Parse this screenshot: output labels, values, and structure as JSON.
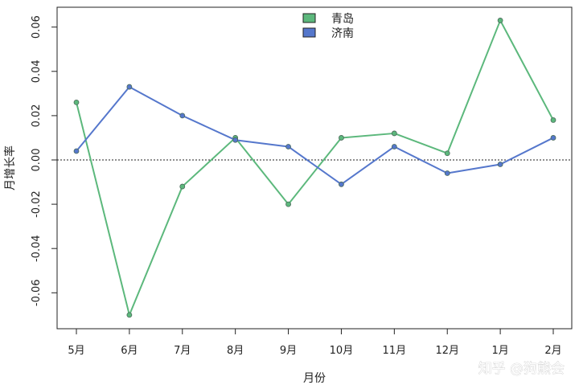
{
  "chart_data": {
    "type": "line",
    "title": "",
    "xlabel": "月份",
    "ylabel": "月增长率",
    "categories": [
      "5月",
      "6月",
      "7月",
      "8月",
      "9月",
      "10月",
      "11月",
      "12月",
      "1月",
      "2月"
    ],
    "series": [
      {
        "name": "青岛",
        "color": "#5cb87c",
        "values": [
          0.026,
          -0.07,
          -0.012,
          0.01,
          -0.02,
          0.01,
          0.012,
          0.003,
          0.063,
          0.018
        ]
      },
      {
        "name": "济南",
        "color": "#5577cc",
        "values": [
          0.004,
          0.033,
          0.02,
          0.009,
          0.006,
          -0.011,
          0.006,
          -0.006,
          -0.002,
          0.01
        ]
      }
    ],
    "yticks": [
      -0.06,
      -0.04,
      -0.02,
      0.0,
      0.02,
      0.04,
      0.06
    ],
    "ytick_labels": [
      "-0.06",
      "-0.04",
      "-0.02",
      "0.00",
      "0.02",
      "0.04",
      "0.06"
    ],
    "ylim": [
      -0.076,
      0.069
    ],
    "reference_line": 0,
    "grid": false,
    "legend_position": "top-center"
  },
  "watermark": "知乎 @狗熊会"
}
